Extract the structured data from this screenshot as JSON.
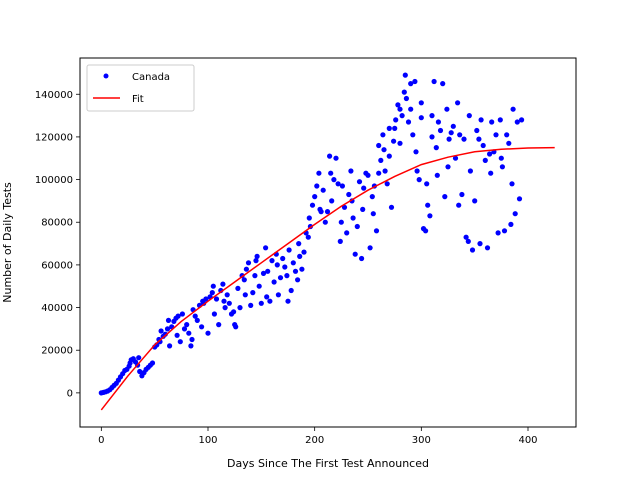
{
  "chart_data": {
    "type": "scatter",
    "xlabel": "Days Since The First Test Announced",
    "ylabel": "Number of Daily Tests",
    "xlim": [
      -20,
      445
    ],
    "ylim": [
      -16000,
      157000
    ],
    "xticks": [
      0,
      100,
      200,
      300,
      400
    ],
    "yticks": [
      0,
      20000,
      40000,
      60000,
      80000,
      100000,
      120000,
      140000
    ],
    "grid": false,
    "legend_position": "top-left",
    "legend": [
      "Canada",
      "Fit"
    ],
    "series": [
      {
        "name": "Canada",
        "kind": "points",
        "color": "#0000ff",
        "points": [
          [
            0,
            0
          ],
          [
            2,
            200
          ],
          [
            4,
            500
          ],
          [
            6,
            900
          ],
          [
            8,
            1500
          ],
          [
            10,
            2500
          ],
          [
            12,
            3500
          ],
          [
            14,
            4500
          ],
          [
            16,
            6000
          ],
          [
            18,
            7500
          ],
          [
            20,
            9000
          ],
          [
            22,
            10500
          ],
          [
            24,
            11000
          ],
          [
            26,
            12500
          ],
          [
            27,
            14000
          ],
          [
            28,
            15500
          ],
          [
            30,
            16000
          ],
          [
            32,
            14500
          ],
          [
            34,
            13000
          ],
          [
            35,
            16500
          ],
          [
            36,
            10000
          ],
          [
            38,
            8000
          ],
          [
            40,
            9500
          ],
          [
            42,
            11000
          ],
          [
            44,
            12000
          ],
          [
            46,
            13000
          ],
          [
            48,
            14000
          ],
          [
            50,
            21500
          ],
          [
            52,
            22500
          ],
          [
            54,
            25000
          ],
          [
            55,
            24000
          ],
          [
            56,
            29000
          ],
          [
            58,
            26500
          ],
          [
            60,
            27500
          ],
          [
            62,
            30000
          ],
          [
            63,
            34000
          ],
          [
            64,
            22000
          ],
          [
            66,
            31000
          ],
          [
            68,
            33500
          ],
          [
            70,
            35000
          ],
          [
            71,
            27000
          ],
          [
            72,
            36000
          ],
          [
            74,
            24000
          ],
          [
            76,
            37000
          ],
          [
            78,
            30000
          ],
          [
            80,
            32000
          ],
          [
            82,
            28000
          ],
          [
            84,
            22000
          ],
          [
            85,
            25000
          ],
          [
            86,
            39000
          ],
          [
            88,
            36000
          ],
          [
            90,
            34000
          ],
          [
            92,
            41000
          ],
          [
            94,
            31000
          ],
          [
            95,
            43000
          ],
          [
            96,
            42000
          ],
          [
            98,
            44000
          ],
          [
            100,
            28000
          ],
          [
            102,
            45000
          ],
          [
            104,
            47000
          ],
          [
            105,
            50000
          ],
          [
            106,
            37000
          ],
          [
            108,
            44000
          ],
          [
            110,
            32000
          ],
          [
            112,
            48000
          ],
          [
            114,
            51000
          ],
          [
            115,
            43000
          ],
          [
            116,
            40000
          ],
          [
            118,
            46000
          ],
          [
            120,
            42000
          ],
          [
            122,
            37000
          ],
          [
            124,
            38000
          ],
          [
            125,
            32000
          ],
          [
            126,
            31000
          ],
          [
            128,
            49000
          ],
          [
            130,
            40000
          ],
          [
            132,
            55000
          ],
          [
            134,
            53000
          ],
          [
            135,
            46000
          ],
          [
            136,
            58000
          ],
          [
            138,
            61000
          ],
          [
            140,
            41000
          ],
          [
            142,
            47000
          ],
          [
            144,
            55000
          ],
          [
            145,
            62000
          ],
          [
            146,
            64000
          ],
          [
            148,
            50000
          ],
          [
            150,
            42000
          ],
          [
            152,
            56000
          ],
          [
            154,
            68000
          ],
          [
            155,
            45000
          ],
          [
            156,
            57000
          ],
          [
            158,
            43000
          ],
          [
            160,
            62000
          ],
          [
            162,
            52000
          ],
          [
            164,
            65000
          ],
          [
            165,
            60000
          ],
          [
            166,
            46000
          ],
          [
            168,
            54000
          ],
          [
            170,
            63000
          ],
          [
            172,
            59000
          ],
          [
            174,
            55000
          ],
          [
            175,
            43000
          ],
          [
            176,
            67000
          ],
          [
            178,
            48000
          ],
          [
            180,
            61000
          ],
          [
            182,
            57000
          ],
          [
            184,
            53000
          ],
          [
            185,
            70000
          ],
          [
            186,
            64000
          ],
          [
            188,
            58000
          ],
          [
            190,
            66000
          ],
          [
            192,
            75000
          ],
          [
            194,
            73000
          ],
          [
            195,
            82000
          ],
          [
            196,
            78000
          ],
          [
            198,
            88000
          ],
          [
            200,
            92000
          ],
          [
            202,
            97000
          ],
          [
            204,
            103000
          ],
          [
            205,
            86000
          ],
          [
            206,
            85000
          ],
          [
            208,
            95000
          ],
          [
            210,
            80000
          ],
          [
            212,
            85000
          ],
          [
            214,
            111000
          ],
          [
            215,
            103000
          ],
          [
            216,
            90000
          ],
          [
            218,
            100000
          ],
          [
            220,
            110000
          ],
          [
            222,
            98000
          ],
          [
            224,
            71000
          ],
          [
            225,
            80000
          ],
          [
            226,
            97000
          ],
          [
            228,
            87000
          ],
          [
            230,
            75000
          ],
          [
            232,
            93000
          ],
          [
            234,
            104000
          ],
          [
            235,
            90000
          ],
          [
            236,
            82000
          ],
          [
            238,
            65000
          ],
          [
            240,
            78000
          ],
          [
            242,
            99000
          ],
          [
            244,
            63000
          ],
          [
            245,
            86000
          ],
          [
            246,
            96000
          ],
          [
            248,
            103000
          ],
          [
            250,
            102000
          ],
          [
            252,
            68000
          ],
          [
            254,
            92000
          ],
          [
            255,
            84000
          ],
          [
            256,
            97000
          ],
          [
            258,
            76000
          ],
          [
            260,
            103000
          ],
          [
            262,
            109000
          ],
          [
            264,
            121000
          ],
          [
            265,
            114000
          ],
          [
            266,
            104000
          ],
          [
            268,
            98000
          ],
          [
            270,
            111000
          ],
          [
            272,
            87000
          ],
          [
            274,
            118000
          ],
          [
            275,
            124000
          ],
          [
            276,
            128000
          ],
          [
            278,
            135000
          ],
          [
            280,
            117000
          ],
          [
            282,
            130000
          ],
          [
            284,
            141000
          ],
          [
            285,
            149000
          ],
          [
            286,
            138000
          ],
          [
            288,
            127000
          ],
          [
            290,
            133000
          ],
          [
            292,
            121000
          ],
          [
            294,
            146000
          ],
          [
            295,
            113000
          ],
          [
            296,
            104000
          ],
          [
            298,
            100000
          ],
          [
            300,
            129000
          ],
          [
            302,
            77000
          ],
          [
            304,
            76000
          ],
          [
            305,
            98000
          ],
          [
            306,
            88000
          ],
          [
            308,
            83000
          ],
          [
            310,
            120000
          ],
          [
            312,
            146000
          ],
          [
            314,
            115000
          ],
          [
            315,
            102000
          ],
          [
            316,
            127000
          ],
          [
            318,
            123000
          ],
          [
            320,
            145000
          ],
          [
            322,
            92000
          ],
          [
            324,
            133000
          ],
          [
            325,
            106000
          ],
          [
            326,
            119000
          ],
          [
            328,
            122000
          ],
          [
            330,
            125000
          ],
          [
            332,
            110000
          ],
          [
            334,
            136000
          ],
          [
            335,
            88000
          ],
          [
            336,
            121000
          ],
          [
            338,
            93000
          ],
          [
            340,
            119000
          ],
          [
            342,
            73000
          ],
          [
            344,
            71000
          ],
          [
            345,
            130000
          ],
          [
            346,
            104000
          ],
          [
            348,
            67000
          ],
          [
            350,
            90000
          ],
          [
            352,
            123000
          ],
          [
            354,
            119000
          ],
          [
            355,
            70000
          ],
          [
            356,
            128000
          ],
          [
            358,
            116000
          ],
          [
            360,
            109000
          ],
          [
            362,
            68000
          ],
          [
            364,
            112000
          ],
          [
            365,
            103000
          ],
          [
            366,
            127000
          ],
          [
            368,
            113000
          ],
          [
            370,
            121000
          ],
          [
            372,
            75000
          ],
          [
            374,
            128000
          ],
          [
            375,
            110000
          ],
          [
            376,
            106000
          ],
          [
            378,
            76000
          ],
          [
            380,
            121000
          ],
          [
            382,
            117000
          ],
          [
            384,
            79000
          ],
          [
            385,
            98000
          ],
          [
            386,
            133000
          ],
          [
            388,
            84000
          ],
          [
            390,
            127000
          ],
          [
            392,
            91000
          ],
          [
            394,
            128000
          ],
          [
            310,
            130000
          ],
          [
            300,
            136000
          ],
          [
            290,
            145000
          ],
          [
            280,
            133000
          ],
          [
            270,
            124000
          ],
          [
            260,
            116000
          ]
        ]
      },
      {
        "name": "Fit",
        "kind": "line",
        "color": "#ff0000",
        "points": [
          [
            0,
            -8000
          ],
          [
            25,
            8000
          ],
          [
            50,
            22500
          ],
          [
            75,
            33500
          ],
          [
            100,
            43000
          ],
          [
            125,
            52000
          ],
          [
            150,
            61000
          ],
          [
            175,
            70000
          ],
          [
            200,
            79000
          ],
          [
            225,
            87500
          ],
          [
            250,
            95000
          ],
          [
            275,
            101500
          ],
          [
            300,
            107000
          ],
          [
            325,
            110500
          ],
          [
            350,
            113000
          ],
          [
            375,
            114200
          ],
          [
            400,
            114800
          ],
          [
            425,
            115000
          ]
        ]
      }
    ]
  }
}
